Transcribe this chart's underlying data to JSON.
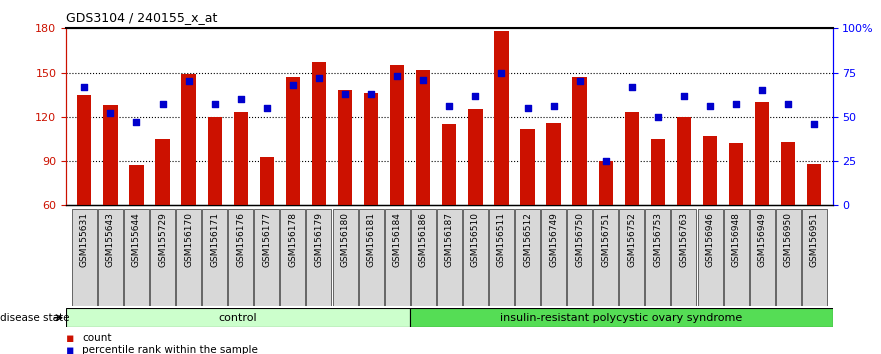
{
  "title": "GDS3104 / 240155_x_at",
  "samples": [
    "GSM155631",
    "GSM155643",
    "GSM155644",
    "GSM155729",
    "GSM156170",
    "GSM156171",
    "GSM156176",
    "GSM156177",
    "GSM156178",
    "GSM156179",
    "GSM156180",
    "GSM156181",
    "GSM156184",
    "GSM156186",
    "GSM156187",
    "GSM156510",
    "GSM156511",
    "GSM156512",
    "GSM156749",
    "GSM156750",
    "GSM156751",
    "GSM156752",
    "GSM156753",
    "GSM156763",
    "GSM156946",
    "GSM156948",
    "GSM156949",
    "GSM156950",
    "GSM156951"
  ],
  "bar_values": [
    135,
    128,
    87,
    105,
    149,
    120,
    123,
    93,
    147,
    157,
    138,
    136,
    155,
    152,
    115,
    125,
    178,
    112,
    116,
    147,
    90,
    123,
    105,
    120,
    107,
    102,
    130,
    103,
    88
  ],
  "percentile_values": [
    67,
    52,
    47,
    57,
    70,
    57,
    60,
    55,
    68,
    72,
    63,
    63,
    73,
    71,
    56,
    62,
    75,
    55,
    56,
    70,
    25,
    67,
    50,
    62,
    56,
    57,
    65,
    57,
    46
  ],
  "control_count": 13,
  "disease_count": 16,
  "ylim_left": [
    60,
    180
  ],
  "ylim_right": [
    0,
    100
  ],
  "yticks_left": [
    60,
    90,
    120,
    150,
    180
  ],
  "yticks_right": [
    0,
    25,
    50,
    75,
    100
  ],
  "ytick_right_labels": [
    "0",
    "25",
    "50",
    "75",
    "100%"
  ],
  "bar_color": "#cc1100",
  "marker_color": "#0000cc",
  "control_label": "control",
  "disease_label": "insulin-resistant polycystic ovary syndrome",
  "control_bg": "#ccffcc",
  "disease_bg": "#55dd55",
  "legend_count": "count",
  "legend_percentile": "percentile rank within the sample",
  "grid_values": [
    90,
    120,
    150
  ],
  "xtick_bg": "#d8d8d8"
}
